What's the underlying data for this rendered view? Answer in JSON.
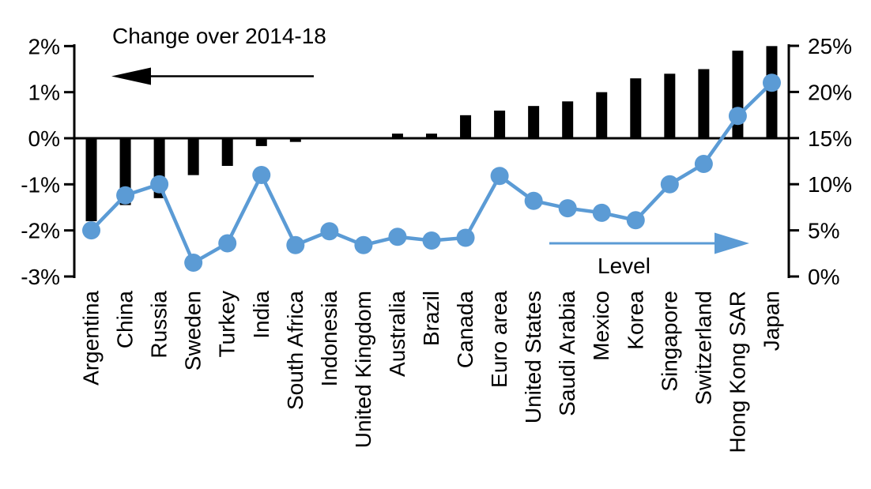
{
  "chart_data": {
    "type": "combo",
    "title": "",
    "categories": [
      "Argentina",
      "China",
      "Russia",
      "Sweden",
      "Turkey",
      "India",
      "South Africa",
      "Indonesia",
      "United Kingdom",
      "Australia",
      "Brazil",
      "Canada",
      "Euro area",
      "United States",
      "Saudi Arabia",
      "Mexico",
      "Korea",
      "Singapore",
      "Switzerland",
      "Hong Kong SAR",
      "Japan"
    ],
    "series": [
      {
        "name": "Change over 2014-18",
        "type": "bar",
        "axis": "left",
        "color": "#000000",
        "values": [
          -1.8,
          -1.45,
          -1.3,
          -0.8,
          -0.6,
          -0.17,
          -0.08,
          0,
          0,
          0.1,
          0.1,
          0.5,
          0.6,
          0.7,
          0.8,
          1.0,
          1.3,
          1.4,
          1.5,
          1.9,
          2.0
        ]
      },
      {
        "name": "Level",
        "type": "line",
        "axis": "right",
        "color": "#5B9BD5",
        "values": [
          5.0,
          8.8,
          10.0,
          1.5,
          3.6,
          11.0,
          3.4,
          4.9,
          3.4,
          4.3,
          3.9,
          4.2,
          10.9,
          8.2,
          7.4,
          6.9,
          6.1,
          10.0,
          12.2,
          17.4,
          21.0
        ]
      }
    ],
    "axes": {
      "left": {
        "min": -3,
        "max": 2,
        "unit": "%",
        "tick_labels": [
          "2%",
          "1%",
          "0%",
          "-1%",
          "-2%",
          "-3%"
        ],
        "tick_values": [
          2,
          1,
          0,
          -1,
          -2,
          -3
        ]
      },
      "right": {
        "min": 0,
        "max": 25,
        "unit": "%",
        "tick_labels": [
          "25%",
          "20%",
          "15%",
          "10%",
          "5%",
          "0%"
        ],
        "tick_values": [
          25,
          20,
          15,
          10,
          5,
          0
        ]
      }
    },
    "annotations": [
      {
        "text": "Change over 2014-18",
        "arrow": "left",
        "arrow_color": "#000000"
      },
      {
        "text": "Level",
        "arrow": "right",
        "arrow_color": "#5B9BD5"
      }
    ],
    "grid": "off",
    "legend": "none",
    "x_label_rotation": -90
  },
  "colors": {
    "bar": "#000000",
    "line": "#5B9BD5",
    "text": "#000000",
    "background": "#FFFFFF"
  }
}
